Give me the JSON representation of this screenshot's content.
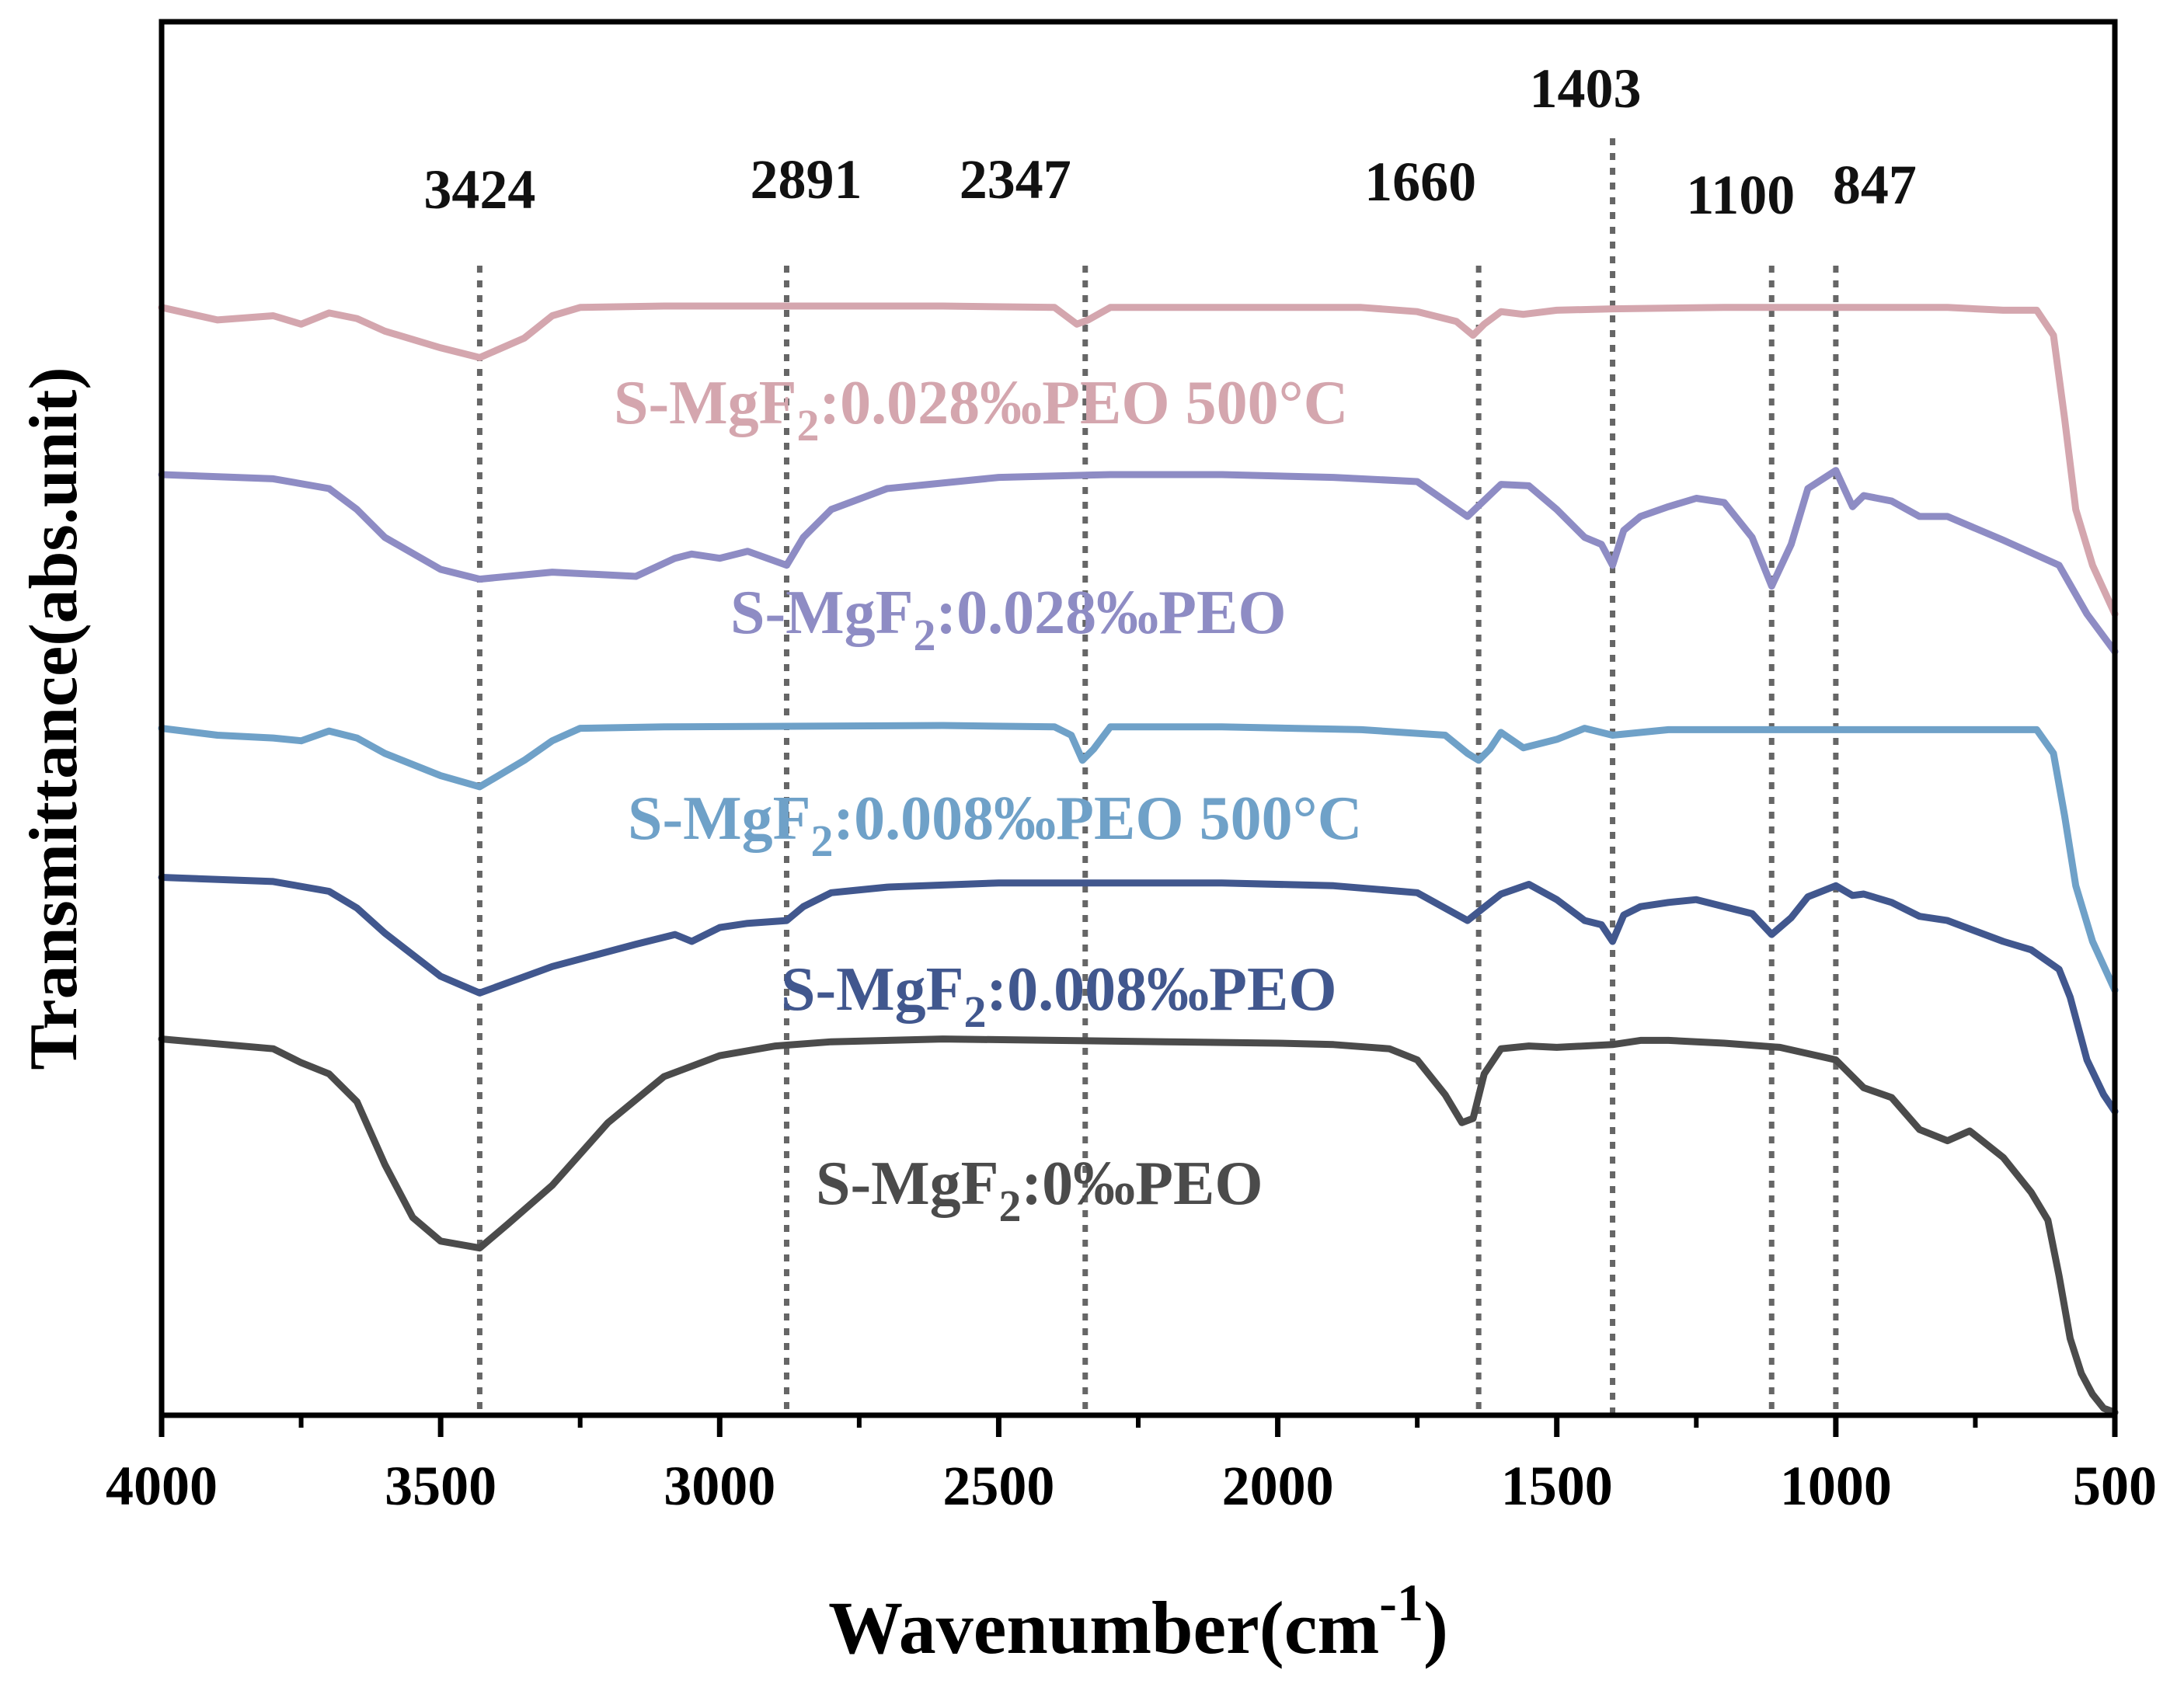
{
  "chart_data": {
    "type": "line",
    "title": "",
    "xlabel": "Wavenumber(cm",
    "xlabel_superscript": "-1",
    "xlabel_close": ")",
    "ylabel": "Transmittance(abs.unit)",
    "xlim": [
      4000,
      500
    ],
    "x_reversed": true,
    "ylim": [
      0,
      100
    ],
    "x_ticks": [
      4000,
      3500,
      3000,
      2500,
      2000,
      1500,
      1000,
      500
    ],
    "x_tick_labels": [
      "4000",
      "3500",
      "3000",
      "2500",
      "2000",
      "1500",
      "1000",
      "500"
    ],
    "grid": false,
    "peak_markers": [
      {
        "label": "3424",
        "x": 3430
      },
      {
        "label": "2891",
        "x": 2880
      },
      {
        "label": "2347",
        "x": 2345
      },
      {
        "label": "1660",
        "x": 1640
      },
      {
        "label": "1403",
        "x": 1400
      },
      {
        "label": "1100",
        "x": 1115
      },
      {
        "label": "847",
        "x": 1000
      }
    ],
    "series": [
      {
        "name": "S-MgF2:0.028‰PEO 500°C",
        "label_parts": [
          "S-MgF",
          "2",
          ":0.028‰PEO  500°C"
        ],
        "color": "#d4a6ae",
        "x": [
          4000,
          3900,
          3800,
          3750,
          3700,
          3650,
          3600,
          3500,
          3430,
          3350,
          3300,
          3250,
          3100,
          2600,
          2400,
          2360,
          2340,
          2300,
          2100,
          1850,
          1750,
          1680,
          1650,
          1630,
          1600,
          1560,
          1500,
          1400,
          1200,
          1000,
          800,
          700,
          640,
          610,
          590,
          570,
          540,
          500
        ],
        "y": [
          79.5,
          78.6,
          78.9,
          78.3,
          79.1,
          78.7,
          77.8,
          76.6,
          75.9,
          77.3,
          78.9,
          79.5,
          79.6,
          79.6,
          79.5,
          78.3,
          78.6,
          79.5,
          79.5,
          79.5,
          79.2,
          78.5,
          77.5,
          78.3,
          79.2,
          79.0,
          79.3,
          79.4,
          79.5,
          79.5,
          79.5,
          79.3,
          79.3,
          77.5,
          71.5,
          65.0,
          61.0,
          57.5
        ]
      },
      {
        "name": "S-MgF2:0.028‰PEO",
        "label_parts": [
          "S-MgF",
          "2",
          ":0.028‰PEO"
        ],
        "color": "#8e8cc4",
        "x": [
          4000,
          3800,
          3700,
          3650,
          3600,
          3500,
          3430,
          3300,
          3150,
          3080,
          3050,
          3000,
          2950,
          2880,
          2850,
          2800,
          2700,
          2500,
          2300,
          2100,
          1900,
          1750,
          1660,
          1600,
          1550,
          1500,
          1450,
          1420,
          1400,
          1380,
          1350,
          1300,
          1250,
          1200,
          1150,
          1115,
          1080,
          1050,
          1000,
          970,
          950,
          900,
          850,
          800,
          700,
          600,
          550,
          500
        ],
        "y": [
          67.5,
          67.2,
          66.5,
          65.0,
          63.0,
          60.7,
          60.0,
          60.5,
          60.2,
          61.5,
          61.8,
          61.5,
          62.0,
          61.0,
          63.0,
          65.0,
          66.5,
          67.3,
          67.5,
          67.5,
          67.3,
          67.0,
          64.5,
          66.8,
          66.7,
          65.0,
          63.0,
          62.5,
          61.0,
          63.5,
          64.5,
          65.2,
          65.8,
          65.5,
          63.0,
          59.5,
          62.5,
          66.5,
          67.8,
          65.2,
          66.0,
          65.6,
          64.5,
          64.5,
          62.8,
          61.0,
          57.5,
          54.8
        ]
      },
      {
        "name": "S-MgF2:0.008‰PEO 500°C",
        "label_parts": [
          "S-MgF",
          "2",
          ":0.008‰PEO  500°C"
        ],
        "color": "#6fa1c8",
        "x": [
          4000,
          3900,
          3800,
          3750,
          3700,
          3650,
          3600,
          3500,
          3430,
          3350,
          3300,
          3250,
          3100,
          2600,
          2400,
          2370,
          2350,
          2330,
          2300,
          2100,
          1850,
          1700,
          1660,
          1640,
          1620,
          1600,
          1560,
          1500,
          1450,
          1400,
          1300,
          1200,
          1000,
          800,
          700,
          640,
          610,
          590,
          570,
          540,
          500
        ],
        "y": [
          49.3,
          48.8,
          48.6,
          48.4,
          49.1,
          48.6,
          47.5,
          45.9,
          45.1,
          47.0,
          48.4,
          49.3,
          49.4,
          49.5,
          49.4,
          48.8,
          47.0,
          47.8,
          49.4,
          49.4,
          49.2,
          48.8,
          47.5,
          47.0,
          47.8,
          49.0,
          47.9,
          48.5,
          49.3,
          48.8,
          49.2,
          49.2,
          49.2,
          49.2,
          49.2,
          49.2,
          47.5,
          43.0,
          38.0,
          34.0,
          30.5
        ]
      },
      {
        "name": "S-MgF2:0.008‰PEO",
        "label_parts": [
          "S-MgF",
          "2",
          ":0.008‰PEO"
        ],
        "color": "#41578e",
        "x": [
          4000,
          3800,
          3700,
          3650,
          3600,
          3500,
          3430,
          3300,
          3150,
          3080,
          3050,
          3000,
          2950,
          2880,
          2850,
          2800,
          2700,
          2500,
          2300,
          2100,
          1900,
          1750,
          1660,
          1600,
          1550,
          1500,
          1450,
          1420,
          1400,
          1380,
          1350,
          1300,
          1250,
          1200,
          1150,
          1115,
          1080,
          1050,
          1000,
          970,
          950,
          900,
          850,
          800,
          700,
          650,
          600,
          580,
          550,
          520,
          500
        ],
        "y": [
          38.6,
          38.3,
          37.6,
          36.4,
          34.6,
          31.5,
          30.3,
          32.2,
          33.8,
          34.5,
          34.0,
          35.0,
          35.3,
          35.5,
          36.5,
          37.5,
          37.9,
          38.2,
          38.2,
          38.2,
          38.0,
          37.5,
          35.5,
          37.4,
          38.1,
          37.0,
          35.5,
          35.2,
          34.0,
          35.9,
          36.5,
          36.8,
          37.0,
          36.5,
          36.0,
          34.5,
          35.7,
          37.2,
          38.0,
          37.3,
          37.4,
          36.8,
          35.8,
          35.5,
          34.0,
          33.4,
          32.0,
          30.0,
          25.5,
          23.0,
          21.8
        ]
      },
      {
        "name": "S-MgF2:0‰PEO",
        "label_parts": [
          "S-MgF",
          "2",
          ":0‰PEO"
        ],
        "color": "#4b4b4b",
        "x": [
          4000,
          3800,
          3750,
          3700,
          3650,
          3600,
          3550,
          3500,
          3430,
          3380,
          3300,
          3200,
          3100,
          3000,
          2900,
          2800,
          2600,
          2400,
          2200,
          2000,
          1900,
          1800,
          1750,
          1700,
          1670,
          1650,
          1630,
          1600,
          1550,
          1500,
          1450,
          1400,
          1350,
          1300,
          1250,
          1200,
          1100,
          1000,
          950,
          900,
          850,
          800,
          760,
          700,
          650,
          620,
          600,
          580,
          560,
          540,
          520,
          500
        ],
        "y": [
          27.0,
          26.3,
          25.3,
          24.5,
          22.5,
          18.0,
          14.2,
          12.5,
          12.0,
          13.7,
          16.5,
          21.0,
          24.3,
          25.8,
          26.5,
          26.8,
          27.0,
          26.9,
          26.8,
          26.7,
          26.6,
          26.3,
          25.5,
          23.0,
          21.0,
          21.3,
          24.5,
          26.3,
          26.5,
          26.4,
          26.5,
          26.6,
          26.9,
          26.9,
          26.8,
          26.7,
          26.4,
          25.5,
          23.5,
          22.8,
          20.5,
          19.7,
          20.4,
          18.5,
          16.0,
          14.0,
          10.0,
          5.5,
          3.0,
          1.5,
          0.5,
          0.2
        ]
      }
    ]
  }
}
